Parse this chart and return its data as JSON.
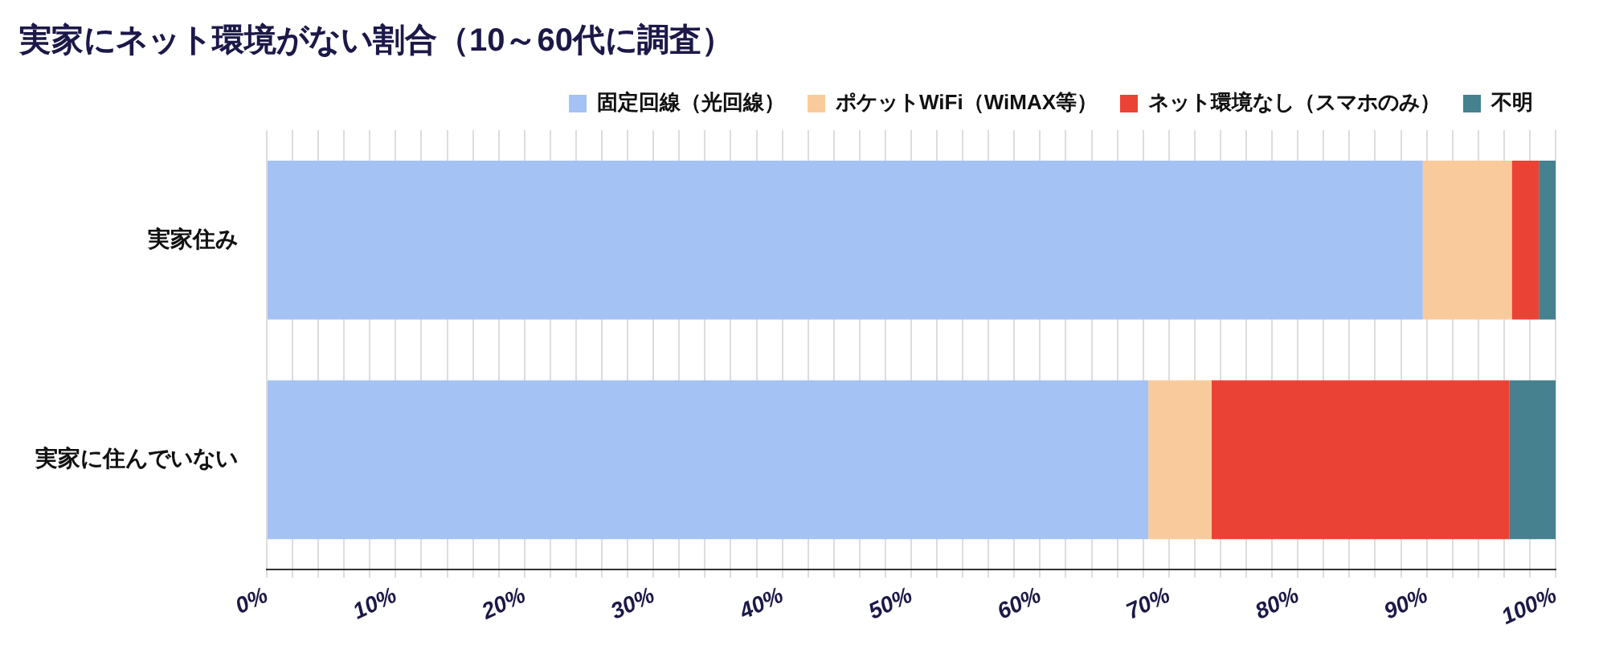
{
  "chart_data": {
    "type": "bar",
    "orientation": "horizontal",
    "stacked": true,
    "title": "実家にネット環境がない割合（10～60代に調査）",
    "categories": [
      "実家住み",
      "実家に住んでいない"
    ],
    "series": [
      {
        "name": "固定回線（光回線）",
        "color": "#a4c2f4",
        "values": [
          89.7,
          68.4
        ]
      },
      {
        "name": "ポケットWiFi（WiMAX等）",
        "color": "#f9cb9c",
        "values": [
          6.9,
          4.9
        ]
      },
      {
        "name": "ネット環境なし（スマホのみ）",
        "color": "#ea4335",
        "values": [
          2.1,
          23.1
        ]
      },
      {
        "name": "不明",
        "color": "#45818e",
        "values": [
          1.3,
          3.6
        ]
      }
    ],
    "xlim": [
      0,
      100
    ],
    "xticks": [
      {
        "value": 0,
        "label": "0%"
      },
      {
        "value": 2,
        "label": null
      },
      {
        "value": 4,
        "label": null
      },
      {
        "value": 6,
        "label": null
      },
      {
        "value": 8,
        "label": null
      },
      {
        "value": 10,
        "label": "10%"
      },
      {
        "value": 12,
        "label": null
      },
      {
        "value": 14,
        "label": null
      },
      {
        "value": 16,
        "label": null
      },
      {
        "value": 18,
        "label": null
      },
      {
        "value": 20,
        "label": "20%"
      },
      {
        "value": 22,
        "label": null
      },
      {
        "value": 24,
        "label": null
      },
      {
        "value": 26,
        "label": null
      },
      {
        "value": 28,
        "label": null
      },
      {
        "value": 30,
        "label": "30%"
      },
      {
        "value": 32,
        "label": null
      },
      {
        "value": 34,
        "label": null
      },
      {
        "value": 36,
        "label": null
      },
      {
        "value": 38,
        "label": null
      },
      {
        "value": 40,
        "label": "40%"
      },
      {
        "value": 42,
        "label": null
      },
      {
        "value": 44,
        "label": null
      },
      {
        "value": 46,
        "label": null
      },
      {
        "value": 48,
        "label": null
      },
      {
        "value": 50,
        "label": "50%"
      },
      {
        "value": 52,
        "label": null
      },
      {
        "value": 54,
        "label": null
      },
      {
        "value": 56,
        "label": null
      },
      {
        "value": 58,
        "label": null
      },
      {
        "value": 60,
        "label": "60%"
      },
      {
        "value": 62,
        "label": null
      },
      {
        "value": 64,
        "label": null
      },
      {
        "value": 66,
        "label": null
      },
      {
        "value": 68,
        "label": null
      },
      {
        "value": 70,
        "label": "70%"
      },
      {
        "value": 72,
        "label": null
      },
      {
        "value": 74,
        "label": null
      },
      {
        "value": 76,
        "label": null
      },
      {
        "value": 78,
        "label": null
      },
      {
        "value": 80,
        "label": "80%"
      },
      {
        "value": 82,
        "label": null
      },
      {
        "value": 84,
        "label": null
      },
      {
        "value": 86,
        "label": null
      },
      {
        "value": 88,
        "label": null
      },
      {
        "value": 90,
        "label": "90%"
      },
      {
        "value": 92,
        "label": null
      },
      {
        "value": 94,
        "label": null
      },
      {
        "value": 96,
        "label": null
      },
      {
        "value": 98,
        "label": null
      },
      {
        "value": 100,
        "label": "100%"
      }
    ],
    "grid": "x",
    "legend": "top"
  }
}
